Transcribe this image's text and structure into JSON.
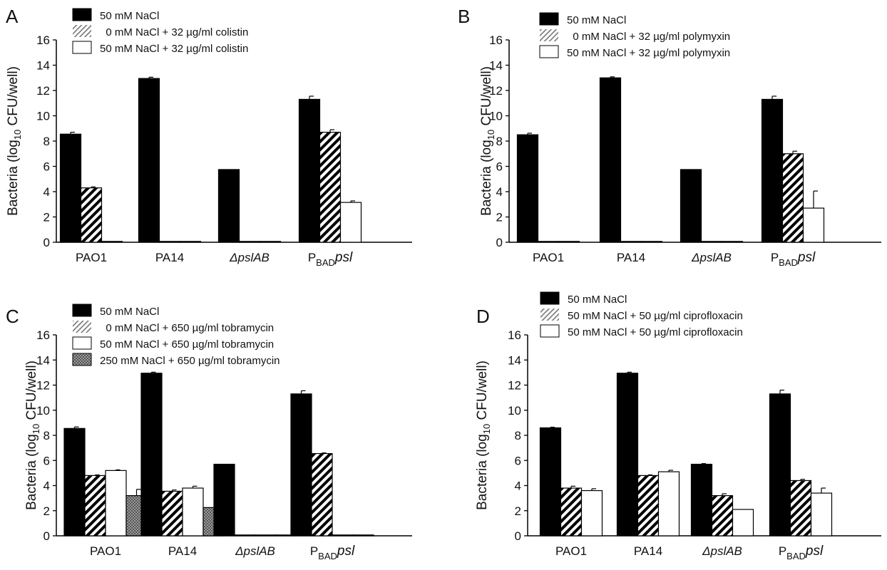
{
  "patterns": {
    "solid": "#000000",
    "hatch": "diagonal-stripes",
    "open": "#ffffff",
    "dotted": "#8a8a8a"
  },
  "chart_data": [
    {
      "panel_label": "A",
      "type": "bar",
      "categories": [
        {
          "text": "PAO1",
          "sub": "",
          "tail": "",
          "italic": false
        },
        {
          "text": "PA14",
          "sub": "",
          "tail": "",
          "italic": false
        },
        {
          "text": "ΔpslAB",
          "sub": "",
          "tail": "",
          "italic": true
        },
        {
          "text": "P",
          "sub": "BAD",
          "tail": "psl",
          "italic": false
        }
      ],
      "ylabel": {
        "pre": "Bacteria (log",
        "sub": "10",
        "post": " CFU/well)"
      },
      "ylim": [
        0,
        16
      ],
      "yticks": [
        0,
        2,
        4,
        6,
        8,
        10,
        12,
        14,
        16
      ],
      "series": [
        {
          "name": "50 mM NaCl",
          "pattern": "solid",
          "values": [
            8.55,
            12.95,
            5.75,
            11.3
          ],
          "errors": [
            0.15,
            0.1,
            0.0,
            0.25
          ]
        },
        {
          "name": "  0 mM NaCl + 32 µg/ml colistin",
          "pattern": "hatch",
          "values": [
            4.3,
            0.02,
            0.02,
            8.7
          ],
          "errors": [
            0.08,
            0.0,
            0.0,
            0.2
          ]
        },
        {
          "name": "50 mM NaCl + 32 µg/ml colistin",
          "pattern": "open",
          "values": [
            0.02,
            0.02,
            0.02,
            3.15
          ],
          "errors": [
            0.0,
            0.0,
            0.0,
            0.12
          ]
        }
      ]
    },
    {
      "panel_label": "B",
      "type": "bar",
      "categories": [
        {
          "text": "PAO1",
          "sub": "",
          "tail": "",
          "italic": false
        },
        {
          "text": "PA14",
          "sub": "",
          "tail": "",
          "italic": false
        },
        {
          "text": "ΔpslAB",
          "sub": "",
          "tail": "",
          "italic": true
        },
        {
          "text": "P",
          "sub": "BAD",
          "tail": "psl",
          "italic": false
        }
      ],
      "ylabel": {
        "pre": "Bacteria (log",
        "sub": "10",
        "post": " CFU/well)"
      },
      "ylim": [
        0,
        16
      ],
      "yticks": [
        0,
        2,
        4,
        6,
        8,
        10,
        12,
        14,
        16
      ],
      "series": [
        {
          "name": "50 mM NaCl",
          "pattern": "solid",
          "values": [
            8.5,
            13.0,
            5.75,
            11.3
          ],
          "errors": [
            0.12,
            0.08,
            0.0,
            0.25
          ]
        },
        {
          "name": "  0 mM NaCl + 32 µg/ml polymyxin",
          "pattern": "hatch",
          "values": [
            0.02,
            0.02,
            0.02,
            7.0
          ],
          "errors": [
            0.0,
            0.0,
            0.0,
            0.2
          ]
        },
        {
          "name": "50 mM NaCl + 32 µg/ml polymyxin",
          "pattern": "open",
          "values": [
            0.02,
            0.02,
            0.02,
            2.7
          ],
          "errors": [
            0.0,
            0.0,
            0.0,
            1.35
          ]
        }
      ]
    },
    {
      "panel_label": "C",
      "type": "bar",
      "categories": [
        {
          "text": "PAO1",
          "sub": "",
          "tail": "",
          "italic": false
        },
        {
          "text": "PA14",
          "sub": "",
          "tail": "",
          "italic": false
        },
        {
          "text": "ΔpslAB",
          "sub": "",
          "tail": "",
          "italic": true
        },
        {
          "text": "P",
          "sub": "BAD",
          "tail": "psl",
          "italic": false
        }
      ],
      "ylabel": {
        "pre": "Bacteria (log",
        "sub": "10",
        "post": " CFU/well)"
      },
      "ylim": [
        0,
        16
      ],
      "yticks": [
        0,
        2,
        4,
        6,
        8,
        10,
        12,
        14,
        16
      ],
      "series": [
        {
          "name": "50 mM NaCl",
          "pattern": "solid",
          "values": [
            8.55,
            12.95,
            5.7,
            11.3
          ],
          "errors": [
            0.12,
            0.08,
            0.0,
            0.25
          ]
        },
        {
          "name": "  0 mM NaCl + 650 µg/ml tobramycin",
          "pattern": "hatch",
          "values": [
            4.8,
            3.55,
            0.02,
            6.55
          ],
          "errors": [
            0.05,
            0.1,
            0.0,
            0.05
          ]
        },
        {
          "name": "50 mM NaCl + 650 µg/ml tobramycin",
          "pattern": "open",
          "values": [
            5.2,
            3.8,
            0.02,
            0.02
          ],
          "errors": [
            0.05,
            0.15,
            0.0,
            0.0
          ]
        },
        {
          "name": "250 mM NaCl + 650 µg/ml tobramycin",
          "pattern": "dotted",
          "values": [
            3.2,
            2.25,
            0.02,
            0.02
          ],
          "errors": [
            0.5,
            0.0,
            0.0,
            0.0
          ]
        }
      ]
    },
    {
      "panel_label": "D",
      "type": "bar",
      "categories": [
        {
          "text": "PAO1",
          "sub": "",
          "tail": "",
          "italic": false
        },
        {
          "text": "PA14",
          "sub": "",
          "tail": "",
          "italic": false
        },
        {
          "text": "ΔpslAB",
          "sub": "",
          "tail": "",
          "italic": true
        },
        {
          "text": "P",
          "sub": "BAD",
          "tail": "psl",
          "italic": false
        }
      ],
      "ylabel": {
        "pre": "Bacteria (log",
        "sub": "10",
        "post": " CFU/well)"
      },
      "ylim": [
        0,
        16
      ],
      "yticks": [
        0,
        2,
        4,
        6,
        8,
        10,
        12,
        14,
        16
      ],
      "series": [
        {
          "name": "50 mM NaCl",
          "pattern": "solid",
          "values": [
            8.6,
            12.95,
            5.7,
            11.3
          ],
          "errors": [
            0.05,
            0.08,
            0.05,
            0.3
          ]
        },
        {
          "name": "50 mM NaCl + 50 µg/ml ciprofloxacin",
          "pattern": "hatch",
          "values": [
            3.8,
            4.8,
            3.2,
            4.4
          ],
          "errors": [
            0.15,
            0.05,
            0.15,
            0.1
          ]
        },
        {
          "name": "50 mM NaCl + 50 µg/ml ciprofloxacin",
          "pattern": "open",
          "values": [
            3.6,
            5.1,
            2.1,
            3.4
          ],
          "errors": [
            0.15,
            0.12,
            0.0,
            0.4
          ]
        }
      ]
    }
  ]
}
